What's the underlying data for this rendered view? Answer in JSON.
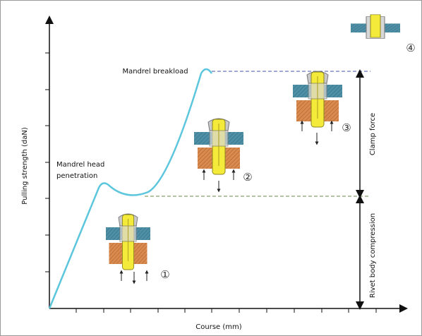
{
  "axes": {
    "y_label": "Pulling strength (daN)",
    "x_label": "Course (mm)"
  },
  "annotations": {
    "breakload": "Mandrel breakload",
    "penetration": [
      "Mandrel head",
      "penetration"
    ],
    "clamp": "Clamp force",
    "compression": "Rivet body compression"
  },
  "steps": [
    "①",
    "②",
    "③",
    "④"
  ]
}
